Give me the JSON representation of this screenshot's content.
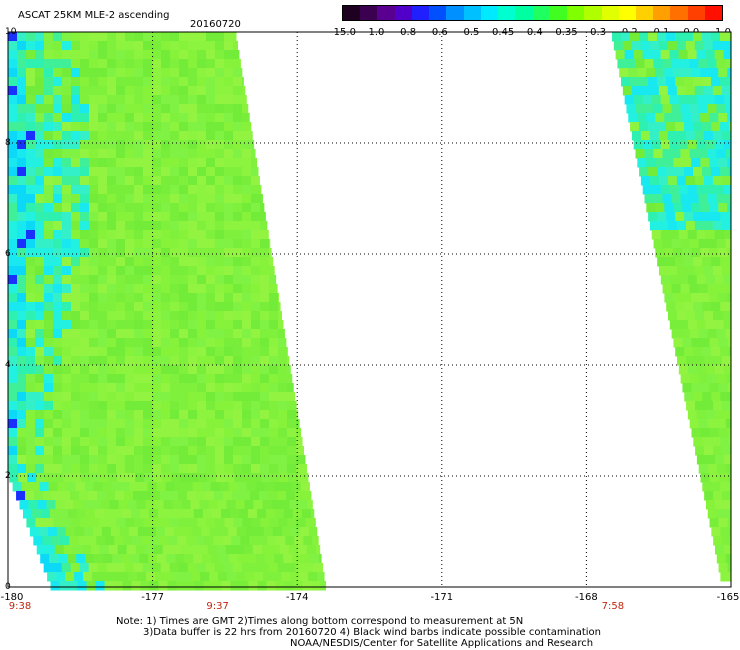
{
  "title": "ASCAT 25KM MLE-2 ascending",
  "date": "20160720",
  "colorbar": {
    "labels": [
      "-15.0",
      "-1.0",
      "-0.8",
      "-0.6",
      "-0.5",
      "-0.45",
      "-0.4",
      "-0.35",
      "-0.3",
      "-0.2",
      "-0.1",
      "0.0",
      "1.0"
    ],
    "colors": [
      "#1e0020",
      "#3c0050",
      "#5a0090",
      "#5000c8",
      "#2020ff",
      "#0050ff",
      "#0090ff",
      "#00c0ff",
      "#00eaff",
      "#00ffd0",
      "#00ffa0",
      "#20ff60",
      "#40ff20",
      "#80ff00",
      "#b0ff00",
      "#e0ff00",
      "#ffff00",
      "#ffd000",
      "#ffa000",
      "#ff7000",
      "#ff4000",
      "#ff1000"
    ]
  },
  "map": {
    "lon_range": [
      -180,
      -165
    ],
    "lat_range": [
      0,
      10
    ],
    "x_ticks": [
      "-180",
      "-177",
      "-174",
      "-171",
      "-168",
      "-165"
    ],
    "y_ticks": [
      "0",
      "2",
      "4",
      "6",
      "8",
      "10"
    ],
    "time_labels": [
      {
        "lon": -180,
        "text": "9:38"
      },
      {
        "lon": -175.9,
        "text": "9:37"
      },
      {
        "lon": -167.7,
        "text": "7:58"
      }
    ]
  },
  "notes": {
    "line1": "Note: 1) Times are GMT 2)Times along bottom correspond to measurement at 5N",
    "line2": "3)Data buffer is 22 hrs from 20160720 4) Black wind barbs indicate possible contamination",
    "line3": "NOAA/NESDIS/Center for Satellite Applications and Research"
  }
}
